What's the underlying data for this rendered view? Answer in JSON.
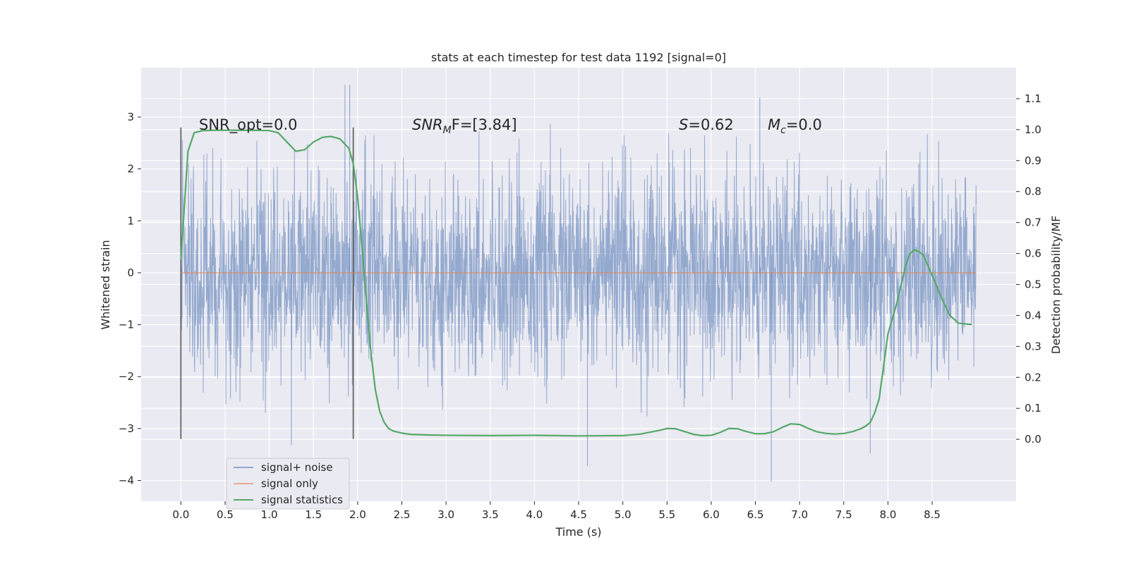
{
  "chart_data": {
    "type": "line",
    "title": "stats at each timestep for test data 1192 [signal=0]",
    "xlabel": "Time (s)",
    "ylabel": "Whitened strain",
    "ylabel_right": "Detection probability/MF",
    "xlim": [
      -0.45,
      9.45
    ],
    "ylim": [
      -4.4,
      3.95
    ],
    "ylim_right": [
      -0.2,
      1.2
    ],
    "xticks": [
      "0.0",
      "0.5",
      "1.0",
      "1.5",
      "2.0",
      "2.5",
      "3.0",
      "3.5",
      "4.0",
      "4.5",
      "5.0",
      "5.5",
      "6.0",
      "6.5",
      "7.0",
      "7.5",
      "8.0",
      "8.5"
    ],
    "yticks": [
      "3",
      "2",
      "1",
      "0",
      "−1",
      "−2",
      "−3",
      "−4"
    ],
    "yticks_right": [
      "1.1",
      "1.0",
      "0.9",
      "0.8",
      "0.7",
      "0.6",
      "0.5",
      "0.4",
      "0.3",
      "0.2",
      "0.1",
      "0.0"
    ],
    "annotations": {
      "snr_opt": "SNR_opt=0.0",
      "snr_mf_base": "SNR",
      "snr_mf_sub": "M",
      "snr_mf_rest": "F=[3.84]",
      "s_base": "S",
      "s_rest": "=0.62",
      "mc_base": "M",
      "mc_sub": "c",
      "mc_rest": "=0.0"
    },
    "vlines": [
      0.0,
      1.95
    ],
    "legend": {
      "position": "lower-left",
      "entries": [
        "signal+ noise",
        "signal only",
        "signal statistics"
      ]
    },
    "series": [
      {
        "name": "signal+ noise",
        "color": "#4c72b0",
        "x_range": [
          0.0,
          9.0
        ],
        "std": 0.95,
        "peak_max": 3.62,
        "peak_min": -4.02
      },
      {
        "name": "signal only",
        "color": "#dd8452",
        "x_range": [
          0.0,
          9.0
        ],
        "value": 0.0
      },
      {
        "name": "signal statistics",
        "color": "#55a868",
        "axis": "right",
        "x": [
          0.0,
          0.08,
          0.15,
          0.25,
          0.4,
          0.6,
          0.8,
          1.0,
          1.1,
          1.2,
          1.3,
          1.4,
          1.5,
          1.6,
          1.7,
          1.8,
          1.9,
          1.95,
          2.0,
          2.05,
          2.1,
          2.15,
          2.2,
          2.25,
          2.3,
          2.35,
          2.4,
          2.5,
          2.6,
          2.8,
          3.0,
          3.5,
          4.0,
          4.5,
          5.0,
          5.2,
          5.4,
          5.5,
          5.6,
          5.7,
          5.8,
          5.9,
          6.0,
          6.1,
          6.2,
          6.3,
          6.4,
          6.5,
          6.6,
          6.7,
          6.8,
          6.9,
          7.0,
          7.1,
          7.2,
          7.3,
          7.4,
          7.5,
          7.6,
          7.7,
          7.75,
          7.8,
          7.85,
          7.9,
          8.0,
          8.1,
          8.15,
          8.2,
          8.25,
          8.3,
          8.35,
          8.4,
          8.5,
          8.6,
          8.7,
          8.8,
          8.9,
          8.95
        ],
        "values": [
          0.58,
          0.93,
          0.99,
          0.997,
          0.998,
          0.998,
          0.998,
          0.997,
          0.99,
          0.96,
          0.93,
          0.935,
          0.96,
          0.975,
          0.978,
          0.97,
          0.94,
          0.89,
          0.78,
          0.62,
          0.44,
          0.28,
          0.16,
          0.09,
          0.055,
          0.035,
          0.027,
          0.02,
          0.016,
          0.014,
          0.013,
          0.012,
          0.013,
          0.011,
          0.012,
          0.017,
          0.028,
          0.035,
          0.034,
          0.025,
          0.016,
          0.012,
          0.013,
          0.022,
          0.035,
          0.034,
          0.025,
          0.018,
          0.018,
          0.024,
          0.038,
          0.05,
          0.048,
          0.035,
          0.024,
          0.019,
          0.017,
          0.019,
          0.025,
          0.035,
          0.043,
          0.055,
          0.085,
          0.13,
          0.34,
          0.44,
          0.5,
          0.56,
          0.6,
          0.612,
          0.606,
          0.595,
          0.53,
          0.46,
          0.4,
          0.375,
          0.372,
          0.371
        ]
      }
    ]
  }
}
